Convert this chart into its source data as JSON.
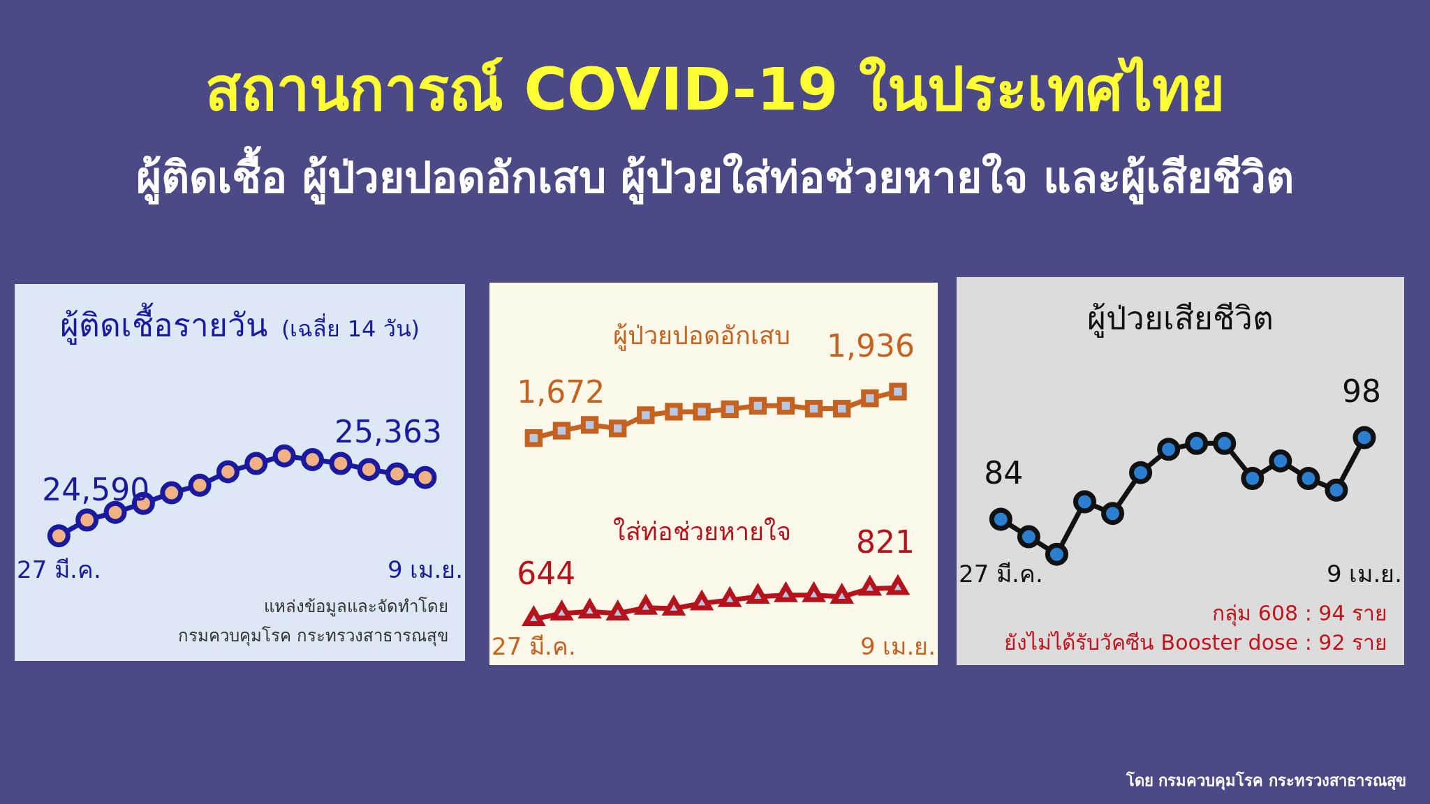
{
  "chart_data": [
    {
      "type": "other",
      "title": "สถานการณ์ COVID-19 ในประเทศไทย",
      "subtitle": "ผู้ติดเชื้อ ผู้ป่วยปอดอักเสบ ผู้ป่วยใส่ท่อช่วยหายใจ และผู้เสียชีวิต",
      "annotations": [
        "โดย กรมควบคุมโรค กระทรวงสาธารณสุข"
      ]
    },
    {
      "type": "line",
      "title": "ผู้ติดเชื้อรายวัน",
      "subtitle": "(เฉลี่ย 14 วัน)",
      "marker": "circle",
      "categories": [
        "27 มี.ค.",
        null,
        null,
        null,
        null,
        null,
        null,
        null,
        null,
        null,
        null,
        null,
        null,
        "9 เม.ย."
      ],
      "series": [
        {
          "color": "#1a1aa0",
          "values": [
            24590,
            24800,
            24900,
            25020,
            25160,
            25260,
            25440,
            25550,
            25650,
            25600,
            25550,
            25470,
            25410,
            25363
          ],
          "value_labels": [
            "24,590",
            null,
            null,
            null,
            null,
            null,
            null,
            null,
            null,
            null,
            null,
            null,
            null,
            "25,363"
          ]
        }
      ],
      "annotations": [
        "แหล่งข้อมูลและจัดทำโดย",
        "กรมควบคุมโรค กระทรวงสาธารณสุข"
      ]
    },
    {
      "type": "line",
      "categories": [
        "27 มี.ค.",
        null,
        null,
        null,
        null,
        null,
        null,
        null,
        null,
        null,
        null,
        null,
        null,
        "9 เม.ย."
      ],
      "series": [
        {
          "name": "ผู้ป่วยปอดอักเสบ",
          "color": "#c5621f",
          "marker": "square",
          "values": [
            1672,
            1714,
            1747,
            1727,
            1802,
            1822,
            1822,
            1836,
            1856,
            1856,
            1839,
            1839,
            1898,
            1936
          ],
          "value_labels": [
            "1,672",
            null,
            null,
            null,
            null,
            null,
            null,
            null,
            null,
            null,
            null,
            null,
            null,
            "1,936"
          ]
        },
        {
          "name": "ใส่ท่อช่วยหายใจ",
          "color": "#b5121b",
          "marker": "triangle",
          "values": [
            644,
            676,
            687,
            676,
            709,
            704,
            734,
            752,
            771,
            780,
            780,
            771,
            817,
            821
          ],
          "value_labels": [
            "644",
            null,
            null,
            null,
            null,
            null,
            null,
            null,
            null,
            null,
            null,
            null,
            null,
            "821"
          ]
        }
      ]
    },
    {
      "type": "line",
      "title": "ผู้ป่วยเสียชีวิต",
      "marker": "circle",
      "categories": [
        "27 มี.ค.",
        null,
        null,
        null,
        null,
        null,
        null,
        null,
        null,
        null,
        null,
        null,
        null,
        "9 เม.ย."
      ],
      "series": [
        {
          "color": "#111111",
          "values": [
            84,
            81,
            78,
            87,
            85,
            92,
            96,
            97,
            97,
            91,
            94,
            91,
            89,
            98
          ],
          "value_labels": [
            "84",
            null,
            null,
            null,
            null,
            null,
            null,
            null,
            null,
            null,
            null,
            null,
            null,
            "98"
          ]
        }
      ],
      "annotations": [
        "กลุ่ม 608 : 94 ราย",
        "ยังไม่ได้รับวัคซีน Booster dose : 92 ราย"
      ]
    }
  ]
}
